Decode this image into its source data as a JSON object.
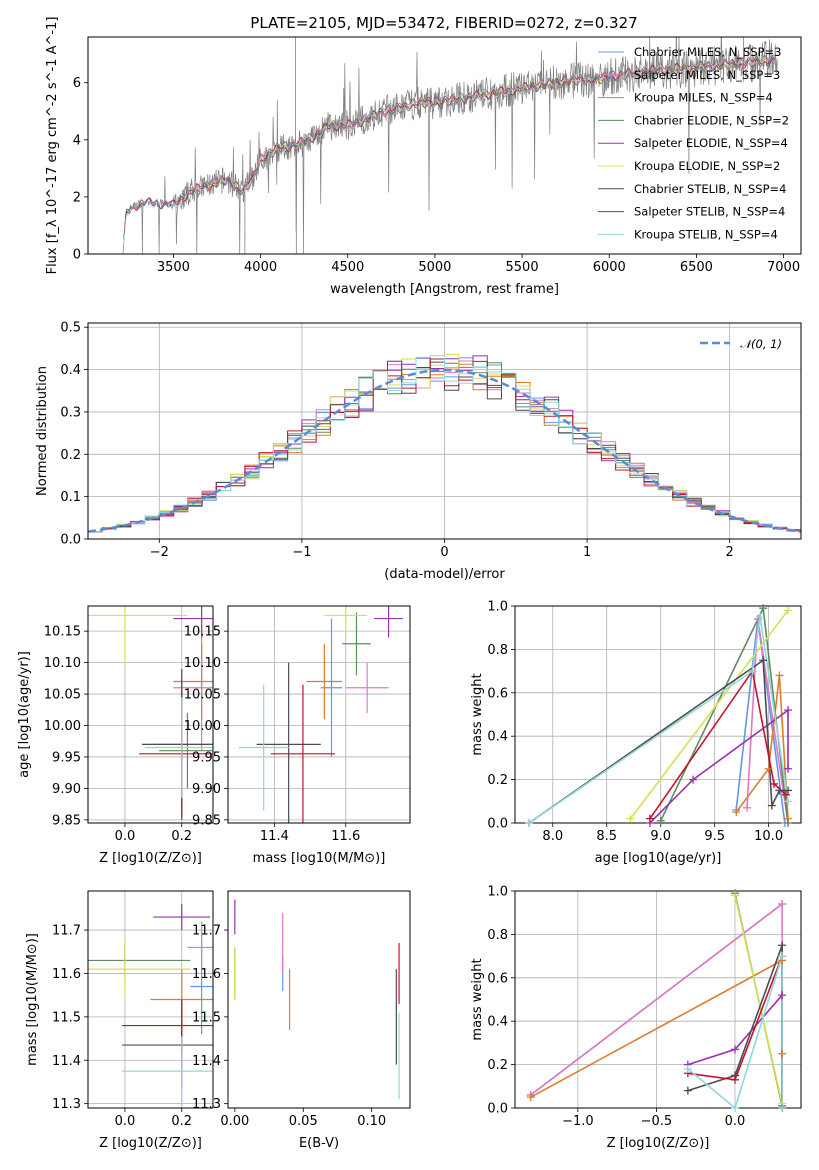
{
  "figure": {
    "title": "PLATE=2105, MJD=53472, FIBERID=0272, z=0.327"
  },
  "models": [
    {
      "name": "Chabrier MILES, N_SSP=3",
      "color": "#6495ed"
    },
    {
      "name": "Salpeter MILES, N_SSP=3",
      "color": "#e377c2"
    },
    {
      "name": "Kroupa MILES, N_SSP=4",
      "color": "#e07b2a"
    },
    {
      "name": "Chabrier ELODIE, N_SSP=2",
      "color": "#5e8c5e"
    },
    {
      "name": "Salpeter ELODIE, N_SSP=4",
      "color": "#9b30b0"
    },
    {
      "name": "Kroupa ELODIE, N_SSP=2",
      "color": "#d4e157"
    },
    {
      "name": "Chabrier STELIB, N_SSP=4",
      "color": "#4d4d4d"
    },
    {
      "name": "Salpeter STELIB, N_SSP=4",
      "color": "#c0142c"
    },
    {
      "name": "Kroupa STELIB, N_SSP=4",
      "color": "#8fd8dc"
    }
  ],
  "chart_data": [
    {
      "id": "spectrum",
      "type": "line",
      "xlabel": "wavelength [Angstrom, rest frame]",
      "ylabel": "Flux [f_λ 10^-17 erg cm^-2 s^-1 A^-1]",
      "xlim": [
        3010,
        7100
      ],
      "ylim": [
        0,
        7.6
      ],
      "xticks": [
        3500,
        4000,
        4500,
        5000,
        5500,
        6000,
        6500,
        7000
      ],
      "yticks": [
        0,
        2,
        4,
        6
      ],
      "data_color": "#808080",
      "grid": false,
      "legend": "top-right",
      "continuum": {
        "x": [
          3210,
          3230,
          3250,
          3300,
          3400,
          3500,
          3600,
          3700,
          3800,
          3900,
          3950,
          4000,
          4100,
          4200,
          4300,
          4400,
          4500,
          4600,
          4700,
          4800,
          4900,
          5000,
          5100,
          5200,
          5300,
          5400,
          5500,
          5600,
          5700,
          5800,
          5900,
          6000,
          6200,
          6400,
          6600,
          6800,
          6950
        ],
        "y": [
          0.0,
          1.45,
          1.6,
          1.75,
          1.8,
          1.7,
          2.2,
          2.4,
          2.6,
          2.2,
          2.6,
          3.3,
          3.7,
          3.8,
          4.1,
          4.5,
          4.5,
          4.7,
          5.0,
          5.1,
          5.3,
          5.3,
          5.4,
          5.5,
          5.6,
          5.7,
          5.8,
          5.9,
          6.0,
          6.1,
          6.1,
          6.2,
          6.4,
          6.5,
          6.6,
          6.7,
          6.8
        ]
      }
    },
    {
      "id": "residuals",
      "type": "line",
      "xlabel": "(data-model)/error",
      "ylabel": "Normed distribution",
      "xlim": [
        -2.5,
        2.5
      ],
      "ylim": [
        0,
        0.51
      ],
      "xticks": [
        -2,
        -1,
        0,
        1,
        2
      ],
      "yticks": [
        0.0,
        0.1,
        0.2,
        0.3,
        0.4,
        0.5
      ],
      "bin_width": 0.1,
      "grid": true,
      "legend": "top-right",
      "reference_label": "𝒩(0, 1)",
      "reference_color": "#5b8ad6"
    },
    {
      "id": "age-vs-Z",
      "type": "scatter",
      "xlabel": "Z [log10(Z/Z⊙)]",
      "ylabel": "age [log10(age/yr)]",
      "xlim": [
        -0.13,
        0.31
      ],
      "ylim": [
        9.845,
        10.19
      ],
      "xticks": [
        0.0,
        0.2
      ],
      "yticks": [
        9.85,
        9.9,
        9.95,
        10.0,
        10.05,
        10.1,
        10.15
      ],
      "grid": true,
      "points": [
        {
          "model": 0,
          "x": 0.2,
          "y": 9.97,
          "xerr": 0.11,
          "yerr": 0.1
        },
        {
          "model": 1,
          "x": 0.27,
          "y": 10.06,
          "xerr": 0.1,
          "yerr": 0.1
        },
        {
          "model": 2,
          "x": 0.27,
          "y": 10.07,
          "xerr": 0.1,
          "yerr": 0.06
        },
        {
          "model": 3,
          "x": 0.22,
          "y": 9.96,
          "xerr": 0.1,
          "yerr": 0.06
        },
        {
          "model": 4,
          "x": 0.27,
          "y": 10.17,
          "xerr": 0.1,
          "yerr": 0.03
        },
        {
          "model": 5,
          "x": 0.0,
          "y": 10.175,
          "xerr": 0.22,
          "yerr": 0.08
        },
        {
          "model": 6,
          "x": 0.2,
          "y": 9.97,
          "xerr": 0.14,
          "yerr": 0.12
        },
        {
          "model": 7,
          "x": 0.2,
          "y": 9.955,
          "xerr": 0.15,
          "yerr": 0.1
        },
        {
          "model": 8,
          "x": 0.2,
          "y": 9.965,
          "xerr": 0.13,
          "yerr": 0.08
        }
      ]
    },
    {
      "id": "age-vs-mass",
      "type": "scatter",
      "xlabel": "mass [log10(M/M⊙)]",
      "ylabel": "",
      "xlim": [
        11.27,
        11.78
      ],
      "ylim": [
        9.845,
        10.19
      ],
      "xticks": [
        11.4,
        11.6
      ],
      "yticks": [
        9.85,
        9.9,
        9.95,
        10.0,
        10.05,
        10.1,
        10.15
      ],
      "grid": true,
      "points": [
        {
          "model": 0,
          "x": 11.56,
          "y": 10.06,
          "xerr": 0.03,
          "yerr": 0.11
        },
        {
          "model": 1,
          "x": 11.66,
          "y": 10.06,
          "xerr": 0.06,
          "yerr": 0.04
        },
        {
          "model": 2,
          "x": 11.54,
          "y": 10.07,
          "xerr": 0.05,
          "yerr": 0.06
        },
        {
          "model": 3,
          "x": 11.63,
          "y": 10.13,
          "xerr": 0.04,
          "yerr": 0.05
        },
        {
          "model": 4,
          "x": 11.72,
          "y": 10.17,
          "xerr": 0.04,
          "yerr": 0.03
        },
        {
          "model": 5,
          "x": 11.6,
          "y": 10.175,
          "xerr": 0.06,
          "yerr": 0.03
        },
        {
          "model": 6,
          "x": 11.44,
          "y": 9.97,
          "xerr": 0.09,
          "yerr": 0.13
        },
        {
          "model": 7,
          "x": 11.48,
          "y": 9.955,
          "xerr": 0.09,
          "yerr": 0.11
        },
        {
          "model": 8,
          "x": 11.37,
          "y": 9.965,
          "xerr": 0.07,
          "yerr": 0.1
        }
      ]
    },
    {
      "id": "weight-vs-age",
      "type": "line",
      "xlabel": "age [log10(age/yr)]",
      "ylabel": "mass weight",
      "xlim": [
        7.65,
        10.3
      ],
      "ylim": [
        0,
        1
      ],
      "xticks": [
        8.0,
        8.5,
        9.0,
        9.5,
        10.0
      ],
      "yticks": [
        0.0,
        0.2,
        0.4,
        0.6,
        0.8,
        1.0
      ],
      "grid": true,
      "series": [
        {
          "model": 0,
          "x": [
            9.7,
            9.9,
            10.15
          ],
          "y": [
            0.06,
            0.94,
            0.0
          ]
        },
        {
          "model": 1,
          "x": [
            9.8,
            9.9,
            10.18
          ],
          "y": [
            0.07,
            0.94,
            0.0
          ]
        },
        {
          "model": 2,
          "x": [
            9.7,
            10.0,
            10.1,
            10.18
          ],
          "y": [
            0.05,
            0.25,
            0.68,
            0.02
          ]
        },
        {
          "model": 3,
          "x": [
            9.0,
            9.95,
            10.18
          ],
          "y": [
            0.01,
            0.99,
            0.0
          ]
        },
        {
          "model": 4,
          "x": [
            8.9,
            9.3,
            10.18,
            10.18
          ],
          "y": [
            0.0,
            0.2,
            0.52,
            0.25
          ]
        },
        {
          "model": 5,
          "x": [
            8.72,
            10.18
          ],
          "y": [
            0.02,
            0.98
          ]
        },
        {
          "model": 6,
          "x": [
            7.78,
            9.95,
            10.03,
            10.1,
            10.18
          ],
          "y": [
            0.0,
            0.75,
            0.08,
            0.15,
            0.15
          ]
        },
        {
          "model": 7,
          "x": [
            8.9,
            9.85,
            10.05,
            10.16
          ],
          "y": [
            0.02,
            0.7,
            0.18,
            0.13
          ]
        },
        {
          "model": 8,
          "x": [
            7.78,
            9.85,
            9.92,
            10.18
          ],
          "y": [
            0.0,
            0.7,
            0.95,
            0.1
          ]
        }
      ]
    },
    {
      "id": "mass-vs-Z",
      "type": "scatter",
      "xlabel": "Z [log10(Z/Z⊙)]",
      "ylabel": "mass [log10(M/M⊙)]",
      "xlim": [
        -0.13,
        0.31
      ],
      "ylim": [
        11.29,
        11.79
      ],
      "xticks": [
        0.0,
        0.2
      ],
      "yticks": [
        11.3,
        11.4,
        11.5,
        11.6,
        11.7
      ],
      "grid": true,
      "points": [
        {
          "model": 0,
          "x": 0.27,
          "y": 11.57,
          "xerr": 0.04,
          "yerr": 0.11
        },
        {
          "model": 1,
          "x": 0.27,
          "y": 11.66,
          "xerr": 0.05,
          "yerr": 0.06
        },
        {
          "model": 2,
          "x": 0.2,
          "y": 11.54,
          "xerr": 0.11,
          "yerr": 0.07
        },
        {
          "model": 3,
          "x": 0.0,
          "y": 11.63,
          "xerr": 0.23,
          "yerr": 0.04
        },
        {
          "model": 4,
          "x": 0.2,
          "y": 11.73,
          "xerr": 0.1,
          "yerr": 0.03
        },
        {
          "model": 5,
          "x": 0.0,
          "y": 11.61,
          "xerr": 0.23,
          "yerr": 0.07
        },
        {
          "model": 6,
          "x": 0.2,
          "y": 11.435,
          "xerr": 0.21,
          "yerr": 0.1
        },
        {
          "model": 7,
          "x": 0.2,
          "y": 11.48,
          "xerr": 0.21,
          "yerr": 0.06
        },
        {
          "model": 8,
          "x": 0.2,
          "y": 11.375,
          "xerr": 0.21,
          "yerr": 0.08
        }
      ]
    },
    {
      "id": "mass-vs-EBV",
      "type": "scatter",
      "xlabel": "E(B-V)",
      "ylabel": "",
      "xlim": [
        -0.005,
        0.128
      ],
      "ylim": [
        11.29,
        11.79
      ],
      "xticks": [
        0.0,
        0.05,
        0.1
      ],
      "yticks": [
        11.3,
        11.4,
        11.5,
        11.6,
        11.7
      ],
      "grid": false,
      "points": [
        {
          "model": 0,
          "x": 0.035,
          "y": 11.6,
          "xerr": 0.0,
          "yerr": 0.04
        },
        {
          "model": 1,
          "x": 0.035,
          "y": 11.67,
          "xerr": 0.0,
          "yerr": 0.07
        },
        {
          "model": 2,
          "x": 0.04,
          "y": 11.54,
          "xerr": 0.0,
          "yerr": 0.07
        },
        {
          "model": 3,
          "x": 0.0,
          "y": 11.6,
          "xerr": 0.0,
          "yerr": 0.06
        },
        {
          "model": 4,
          "x": 0.0,
          "y": 11.73,
          "xerr": 0.0,
          "yerr": 0.04
        },
        {
          "model": 5,
          "x": 0.0,
          "y": 11.6,
          "xerr": 0.0,
          "yerr": 0.06
        },
        {
          "model": 6,
          "x": 0.118,
          "y": 11.5,
          "xerr": 0.0,
          "yerr": 0.11
        },
        {
          "model": 7,
          "x": 0.12,
          "y": 11.6,
          "xerr": 0.0,
          "yerr": 0.07
        },
        {
          "model": 8,
          "x": 0.12,
          "y": 11.41,
          "xerr": 0.0,
          "yerr": 0.1
        }
      ]
    },
    {
      "id": "weight-vs-Z",
      "type": "line",
      "xlabel": "Z [log10(Z/Z⊙)]",
      "ylabel": "mass weight",
      "xlim": [
        -1.4,
        0.42
      ],
      "ylim": [
        0,
        1
      ],
      "xticks": [
        -1.0,
        -0.5,
        0.0
      ],
      "yticks": [
        0.0,
        0.2,
        0.4,
        0.6,
        0.8,
        1.0
      ],
      "grid": true,
      "series": [
        {
          "model": 0,
          "x": [
            -1.3,
            0.3
          ],
          "y": [
            0.06,
            0.94
          ]
        },
        {
          "model": 1,
          "x": [
            -1.3,
            0.3,
            0.3
          ],
          "y": [
            0.06,
            0.94,
            0.0
          ]
        },
        {
          "model": 2,
          "x": [
            -1.3,
            0.3,
            0.3
          ],
          "y": [
            0.05,
            0.68,
            0.25
          ]
        },
        {
          "model": 3,
          "x": [
            0.0,
            0.3
          ],
          "y": [
            0.99,
            0.01
          ]
        },
        {
          "model": 4,
          "x": [
            -0.3,
            0.0,
            0.3,
            0.3
          ],
          "y": [
            0.2,
            0.27,
            0.52,
            0.0
          ]
        },
        {
          "model": 5,
          "x": [
            0.0,
            0.3
          ],
          "y": [
            0.98,
            0.02
          ]
        },
        {
          "model": 6,
          "x": [
            -0.3,
            0.0,
            0.3,
            0.3
          ],
          "y": [
            0.08,
            0.15,
            0.75,
            0.0
          ]
        },
        {
          "model": 7,
          "x": [
            -0.3,
            0.0,
            0.3,
            0.3
          ],
          "y": [
            0.16,
            0.13,
            0.7,
            0.0
          ]
        },
        {
          "model": 8,
          "x": [
            -0.3,
            0.0,
            0.3,
            0.3
          ],
          "y": [
            0.18,
            0.0,
            0.7,
            0.0
          ]
        }
      ]
    }
  ]
}
